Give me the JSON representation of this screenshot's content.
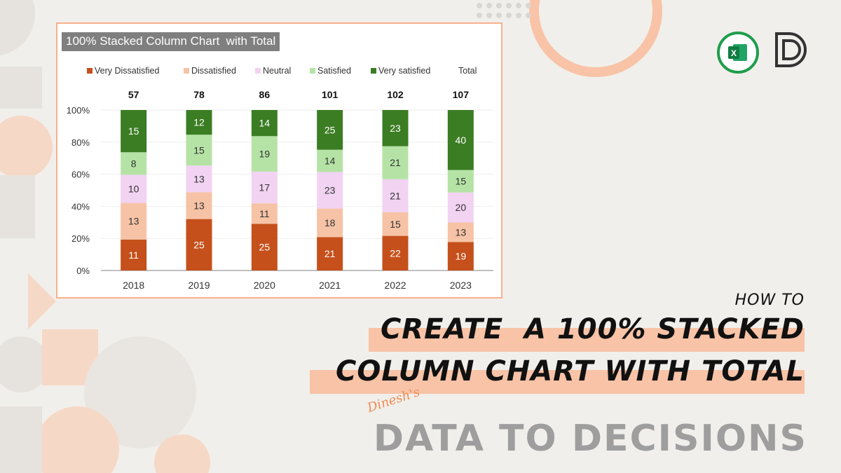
{
  "chart_data": {
    "type": "bar",
    "stacking": "percent",
    "title": "100% Stacked Column Chart  with Total",
    "categories": [
      "2018",
      "2019",
      "2020",
      "2021",
      "2022",
      "2023"
    ],
    "series": [
      {
        "name": "Very Dissatisfied",
        "color": "#c5501b",
        "values": [
          11,
          25,
          25,
          21,
          22,
          19
        ]
      },
      {
        "name": "Dissatisfied",
        "color": "#f6c3a6",
        "values": [
          13,
          13,
          11,
          18,
          15,
          13
        ]
      },
      {
        "name": "Neutral",
        "color": "#f2d3f2",
        "values": [
          10,
          13,
          17,
          23,
          21,
          20
        ]
      },
      {
        "name": "Satisfied",
        "color": "#b5e3a5",
        "values": [
          8,
          15,
          19,
          14,
          21,
          15
        ]
      },
      {
        "name": "Very satisfied",
        "color": "#3b7d23",
        "values": [
          15,
          12,
          14,
          25,
          23,
          40
        ]
      }
    ],
    "totals": {
      "name": "Total",
      "values": [
        57,
        78,
        86,
        101,
        102,
        107
      ]
    },
    "yticks": [
      "0%",
      "20%",
      "40%",
      "60%",
      "80%",
      "100%"
    ],
    "ylim": [
      0,
      100
    ],
    "grid": true,
    "legend": "top"
  },
  "headline": {
    "how_to": "HOW TO",
    "line1": "CREATE  A 100% STACKED",
    "line2": "COLUMN CHART WITH TOTAL"
  },
  "brand": {
    "signature": "Dinesh's",
    "name": "DATA TO DECISIONS"
  },
  "logos": {
    "excel": "excel-icon",
    "brand_mark": "d-monogram-icon"
  },
  "colors": {
    "background": "#f1efeb",
    "accent": "#f8c3a7",
    "card_border": "#f7b08c"
  }
}
